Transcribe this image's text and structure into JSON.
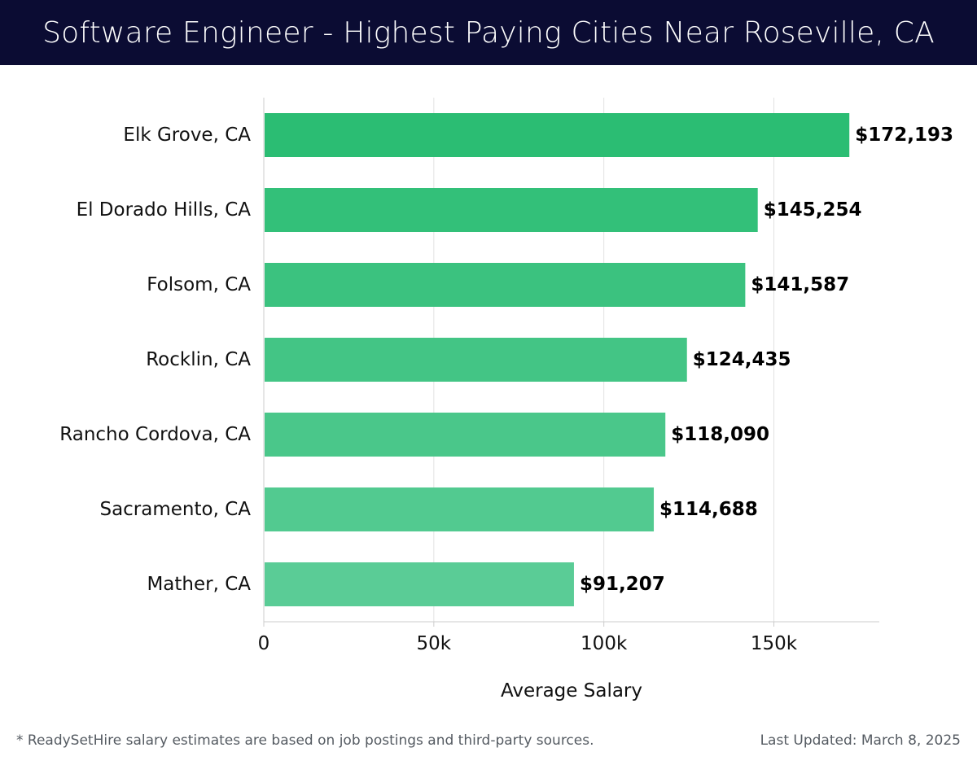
{
  "header": {
    "title": "Software Engineer - Highest Paying Cities Near Roseville, CA"
  },
  "footer": {
    "note": "* ReadySetHire salary estimates are based on job postings and third-party sources.",
    "last_updated": "Last Updated: March 8, 2025"
  },
  "colors": {
    "bar_top": "#2bbd73",
    "bar_bottom": "#5acc96",
    "grid": "#e2e2e2",
    "axis": "#cccccc",
    "title_bg": "#0b0c33"
  },
  "chart_data": {
    "type": "bar",
    "orientation": "horizontal",
    "title": "Software Engineer - Highest Paying Cities Near Roseville, CA",
    "xlabel": "Average Salary",
    "ylabel": "",
    "xlim": [
      0,
      181000
    ],
    "xticks": [
      0,
      50000,
      100000,
      150000
    ],
    "xtick_labels": [
      "0",
      "50k",
      "100k",
      "150k"
    ],
    "grid": true,
    "categories": [
      "Elk Grove, CA",
      "El Dorado Hills, CA",
      "Folsom, CA",
      "Rocklin, CA",
      "Rancho Cordova, CA",
      "Sacramento, CA",
      "Mather, CA"
    ],
    "values": [
      172193,
      145254,
      141587,
      124435,
      118090,
      114688,
      91207
    ],
    "data_labels": [
      "$172,193",
      "$145,254",
      "$141,587",
      "$124,435",
      "$118,090",
      "$114,688",
      "$91,207"
    ]
  }
}
